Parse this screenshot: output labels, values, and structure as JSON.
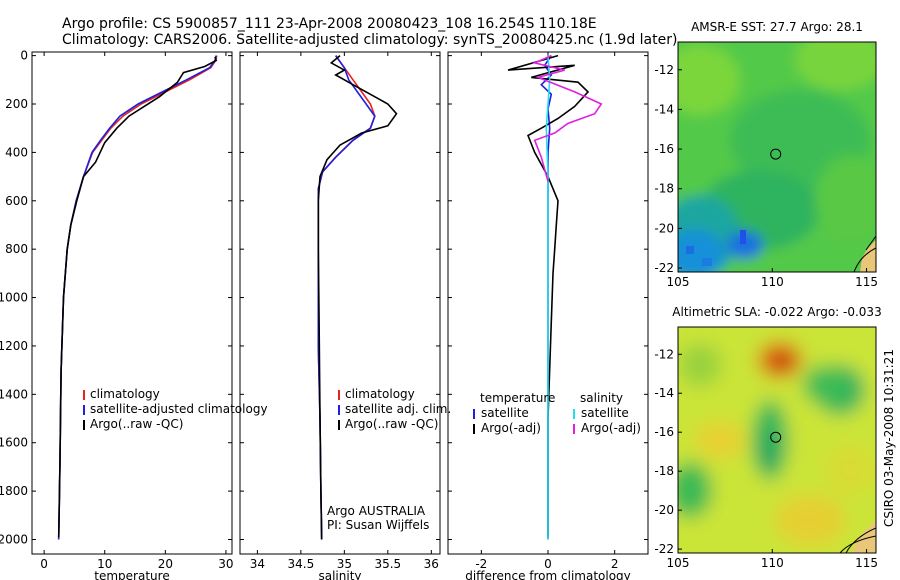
{
  "header": {
    "line1": "Argo profile: CS 5900857_111 23-Apr-2008 20080423_108 16.254S 110.18E",
    "line2": "Climatology: CARS2006. Satellite-adjusted climatology: synTS_20080425.nc (1.9d later)"
  },
  "side_stamp": "CSIRO 03-May-2008 10:31:21",
  "colors": {
    "climatology": "#e8231f",
    "satellite": "#1f1fe0",
    "argo": "#000000",
    "satellite_salinity": "#20e0f0",
    "argo_salinity_adj": "#e020e0"
  },
  "chart_data": [
    {
      "type": "line",
      "id": "temperature",
      "xlabel": "temperature",
      "ylabel": "",
      "xlim": [
        -2,
        31
      ],
      "ylim": [
        2060,
        -15
      ],
      "y_inverted": true,
      "xticks": [
        0,
        10,
        20,
        30
      ],
      "yticks": [
        0,
        200,
        400,
        600,
        800,
        1000,
        1200,
        1400,
        1600,
        1800,
        2000
      ],
      "legend": {
        "placement": "lower-right",
        "entries": [
          "climatology",
          "satellite-adjusted climatology",
          "Argo(..raw -QC)"
        ]
      },
      "series": [
        {
          "name": "climatology",
          "color": "#e8231f",
          "x": [
            28.5,
            28.3,
            27.5,
            24,
            20,
            16,
            13,
            11,
            9.5,
            8,
            6.5,
            5.3,
            4.4,
            3.8,
            3.2,
            2.8,
            2.6,
            2.4
          ],
          "y": [
            0,
            20,
            50,
            100,
            150,
            200,
            250,
            300,
            350,
            400,
            500,
            600,
            700,
            800,
            1000,
            1300,
            1700,
            2000
          ]
        },
        {
          "name": "satellite-adjusted climatology",
          "color": "#1f1fe0",
          "x": [
            28.4,
            28.2,
            27.3,
            23.5,
            19.5,
            15.5,
            12.5,
            10.8,
            9.3,
            7.9,
            6.5,
            5.3,
            4.4,
            3.8,
            3.2,
            2.8,
            2.6,
            2.4
          ],
          "y": [
            0,
            20,
            50,
            100,
            150,
            200,
            250,
            300,
            350,
            400,
            500,
            600,
            700,
            800,
            1000,
            1300,
            1700,
            2000
          ]
        },
        {
          "name": "Argo(..raw -QC)",
          "color": "#000000",
          "x": [
            28.2,
            28.4,
            26.5,
            23,
            22,
            19,
            14,
            12,
            10,
            8.5,
            6.5,
            5.4,
            4.4,
            3.8,
            3.2,
            2.8,
            2.6,
            2.4
          ],
          "y": [
            5,
            20,
            45,
            70,
            110,
            170,
            250,
            300,
            360,
            440,
            500,
            600,
            700,
            800,
            1000,
            1300,
            1700,
            1990
          ]
        }
      ]
    },
    {
      "type": "line",
      "id": "salinity",
      "xlabel": "salinity",
      "ylabel": "",
      "xlim": [
        33.8,
        36.1
      ],
      "ylim": [
        2060,
        -15
      ],
      "y_inverted": true,
      "xticks": [
        34,
        34.5,
        35,
        35.5,
        36
      ],
      "legend": {
        "placement": "lower-right",
        "entries": [
          "climatology",
          "satellite adj. clim.",
          "Argo(..raw -QC)"
        ]
      },
      "annotation": [
        "Argo AUSTRALIA",
        "PI: Susan Wijffels"
      ],
      "series": [
        {
          "name": "climatology",
          "color": "#e8231f",
          "x": [
            34.9,
            35.0,
            35.1,
            35.2,
            35.3,
            35.35,
            35.3,
            35.1,
            34.9,
            34.75,
            34.7,
            34.7,
            34.7,
            34.7,
            34.72,
            34.73,
            34.74
          ],
          "y": [
            0,
            50,
            100,
            150,
            200,
            250,
            300,
            350,
            420,
            480,
            550,
            700,
            900,
            1200,
            1500,
            1800,
            2000
          ]
        },
        {
          "name": "satellite adj. clim.",
          "color": "#1f1fe0",
          "x": [
            34.9,
            35.0,
            35.05,
            35.15,
            35.25,
            35.35,
            35.3,
            35.1,
            34.9,
            34.75,
            34.7,
            34.7,
            34.7,
            34.7,
            34.72,
            34.73,
            34.74
          ],
          "y": [
            0,
            50,
            100,
            150,
            200,
            250,
            300,
            350,
            420,
            480,
            550,
            700,
            900,
            1200,
            1500,
            1800,
            2000
          ]
        },
        {
          "name": "Argo(..raw -QC)",
          "color": "#000000",
          "x": [
            34.95,
            34.85,
            35.0,
            34.9,
            35.1,
            35.3,
            35.5,
            35.6,
            35.5,
            35.2,
            34.95,
            34.8,
            34.72,
            34.7,
            34.7,
            34.71,
            34.72,
            34.73,
            34.74
          ],
          "y": [
            0,
            30,
            60,
            80,
            120,
            160,
            200,
            240,
            290,
            320,
            370,
            430,
            500,
            600,
            800,
            1100,
            1500,
            1800,
            2000
          ]
        }
      ]
    },
    {
      "type": "line",
      "id": "difference",
      "xlabel": "difference from climatology",
      "ylabel": "",
      "xlim": [
        -3,
        3
      ],
      "ylim": [
        2060,
        -15
      ],
      "y_inverted": true,
      "xticks": [
        -2,
        0,
        2
      ],
      "legend": {
        "placement": "lower-center",
        "columns": [
          {
            "header": "temperature",
            "entries": [
              "satellite",
              "Argo(-adj)"
            ]
          },
          {
            "header": "salinity",
            "entries": [
              "satellite",
              "Argo(-adj)"
            ]
          }
        ]
      },
      "series": [
        {
          "name": "temperature satellite",
          "color": "#1f1fe0",
          "x": [
            0.1,
            -0.1,
            0.1,
            -0.2,
            0.1,
            0,
            0.05,
            0,
            0,
            0,
            0
          ],
          "y": [
            0,
            40,
            80,
            120,
            160,
            220,
            300,
            400,
            600,
            1000,
            2000
          ]
        },
        {
          "name": "temperature Argo(-adj)",
          "color": "#000000",
          "x": [
            0.3,
            -1.2,
            0.8,
            -0.5,
            0.9,
            1.2,
            0.8,
            0.3,
            -0.2,
            -0.6,
            -0.4,
            0,
            0.3,
            0.25,
            0.2,
            0.15,
            0.1,
            0,
            0
          ],
          "y": [
            0,
            60,
            40,
            90,
            110,
            150,
            210,
            260,
            300,
            330,
            400,
            500,
            600,
            700,
            800,
            900,
            1100,
            1500,
            1990
          ]
        },
        {
          "name": "salinity satellite",
          "color": "#20e0f0",
          "x": [
            0,
            0.05,
            0,
            -0.05,
            0,
            0,
            0
          ],
          "y": [
            0,
            100,
            200,
            300,
            500,
            1000,
            2000
          ]
        },
        {
          "name": "salinity Argo(-adj)",
          "color": "#e020e0",
          "x": [
            0.1,
            -0.4,
            0.5,
            -0.3,
            0.8,
            1.6,
            1.4,
            0.6,
            0.2,
            -0.4,
            -0.2,
            0
          ],
          "y": [
            0,
            30,
            60,
            90,
            150,
            200,
            240,
            280,
            320,
            350,
            420,
            520
          ]
        }
      ]
    },
    {
      "type": "heatmap",
      "id": "sst_map",
      "title": "AMSR-E SST: 27.7 Argo: 28.1",
      "xlim": [
        105,
        115.5
      ],
      "ylim": [
        -22.2,
        -10.6
      ],
      "xticks": [
        105,
        110,
        115
      ],
      "yticks": [
        -12,
        -14,
        -16,
        -18,
        -20,
        -22
      ],
      "marker": {
        "x": 110.18,
        "y": -16.254
      }
    },
    {
      "type": "heatmap",
      "id": "sla_map",
      "title": "Altimetric SLA: -0.022 Argo: -0.033",
      "xlim": [
        105,
        115.5
      ],
      "ylim": [
        -22.2,
        -10.6
      ],
      "xticks": [
        105,
        110,
        115
      ],
      "yticks": [
        -12,
        -14,
        -16,
        -18,
        -20,
        -22
      ],
      "marker": {
        "x": 110.18,
        "y": -16.254
      }
    }
  ]
}
